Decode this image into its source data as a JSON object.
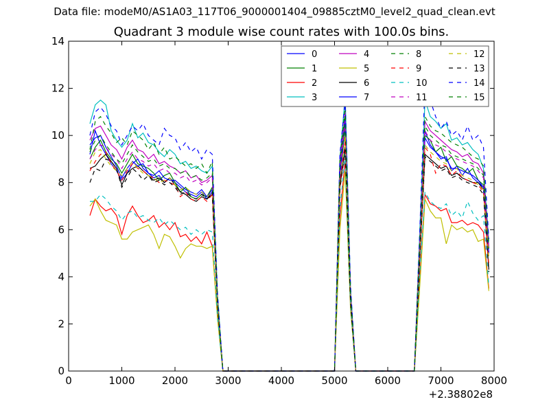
{
  "figure": {
    "suptitle": "Data file: modeM0/AS1A03_117T06_9000001404_09885cztM0_level2_quad_clean.evt"
  },
  "chart_data": {
    "type": "line",
    "title": "Quadrant 3 module wise count rates with 100.0s bins.",
    "xlabel": "",
    "ylabel": "",
    "x_offset_label": "+2.38802e8",
    "xlim": [
      0,
      8000
    ],
    "ylim": [
      0,
      14
    ],
    "x_ticks": [
      0,
      1000,
      2000,
      3000,
      4000,
      5000,
      6000,
      7000,
      8000
    ],
    "y_ticks": [
      0,
      2,
      4,
      6,
      8,
      10,
      12,
      14
    ],
    "grid": false,
    "legend_position": "top-right",
    "x": [
      400,
      500,
      600,
      700,
      800,
      900,
      1000,
      1100,
      1200,
      1300,
      1400,
      1500,
      1600,
      1700,
      1800,
      1900,
      2000,
      2100,
      2200,
      2300,
      2400,
      2500,
      2600,
      2700,
      2800,
      2900,
      3000,
      5000,
      5100,
      5200,
      5300,
      5400,
      6500,
      6600,
      6700,
      6800,
      6900,
      7000,
      7100,
      7200,
      7300,
      7400,
      7500,
      7600,
      7700,
      7800,
      7900
    ],
    "series": [
      {
        "name": "0",
        "color": "#0000ff",
        "dash": false,
        "values": [
          9.2,
          10.2,
          9.6,
          9.2,
          8.8,
          8.5,
          8.1,
          8.4,
          8.8,
          9.0,
          8.6,
          8.4,
          8.2,
          8.3,
          8.0,
          8.2,
          8.0,
          7.8,
          7.6,
          7.5,
          7.4,
          7.6,
          7.3,
          7.6,
          3.0,
          0,
          0,
          0,
          8.0,
          10.5,
          3.0,
          0,
          0,
          5.0,
          10.2,
          9.6,
          9.3,
          9.0,
          9.1,
          8.5,
          8.7,
          8.3,
          8.6,
          8.2,
          8.0,
          7.8,
          5.0
        ]
      },
      {
        "name": "1",
        "color": "#008000",
        "dash": false,
        "values": [
          9.0,
          9.5,
          9.8,
          9.3,
          9.0,
          8.8,
          8.4,
          8.8,
          9.2,
          8.8,
          8.7,
          8.6,
          8.4,
          8.1,
          8.3,
          8.4,
          8.0,
          7.6,
          7.8,
          7.4,
          7.3,
          7.5,
          7.4,
          7.8,
          2.8,
          0,
          0,
          0,
          8.5,
          10.3,
          3.0,
          0,
          0,
          5.0,
          10.0,
          9.8,
          9.3,
          9.5,
          8.9,
          9.1,
          8.7,
          8.6,
          8.4,
          8.6,
          8.1,
          7.9,
          5.2
        ]
      },
      {
        "name": "2",
        "color": "#ff0000",
        "dash": false,
        "values": [
          6.6,
          7.3,
          7.0,
          6.8,
          6.9,
          6.6,
          5.8,
          6.6,
          7.0,
          6.6,
          6.3,
          6.4,
          6.6,
          6.1,
          6.3,
          6.0,
          6.3,
          5.7,
          5.8,
          5.5,
          5.7,
          5.4,
          5.9,
          5.3,
          2.3,
          0,
          0,
          0,
          6.5,
          9.0,
          2.7,
          0,
          0,
          3.8,
          7.5,
          7.1,
          7.0,
          6.8,
          6.9,
          6.3,
          6.3,
          6.4,
          6.2,
          6.3,
          6.2,
          5.9,
          3.5
        ]
      },
      {
        "name": "3",
        "color": "#00bfbf",
        "dash": false,
        "values": [
          10.5,
          11.3,
          11.5,
          11.3,
          10.2,
          9.8,
          9.5,
          9.8,
          10.5,
          9.9,
          10.1,
          9.7,
          9.6,
          9.3,
          9.1,
          9.4,
          9.2,
          8.8,
          8.9,
          8.6,
          8.7,
          8.5,
          8.4,
          8.7,
          3.2,
          0,
          0,
          0,
          9.0,
          11.7,
          3.5,
          0,
          0,
          5.8,
          11.5,
          10.8,
          10.6,
          10.3,
          10.5,
          9.8,
          9.9,
          9.6,
          9.7,
          9.4,
          9.2,
          8.6,
          5.5
        ]
      },
      {
        "name": "4",
        "color": "#bf00bf",
        "dash": false,
        "values": [
          9.8,
          10.3,
          10.4,
          10.0,
          9.6,
          9.4,
          9.0,
          9.5,
          9.8,
          9.4,
          9.3,
          9.0,
          9.2,
          8.8,
          8.9,
          8.7,
          8.6,
          8.4,
          8.5,
          8.2,
          8.3,
          8.0,
          8.1,
          8.3,
          3.0,
          0,
          0,
          0,
          8.8,
          11.0,
          3.3,
          0,
          0,
          5.4,
          10.6,
          10.2,
          10.0,
          9.8,
          9.6,
          9.4,
          9.3,
          9.1,
          9.2,
          8.9,
          8.8,
          8.4,
          5.3
        ]
      },
      {
        "name": "5",
        "color": "#bfbf00",
        "dash": false,
        "values": [
          7.0,
          7.3,
          6.8,
          6.4,
          6.3,
          6.2,
          5.6,
          5.6,
          5.9,
          6.0,
          6.1,
          6.2,
          5.8,
          5.2,
          5.8,
          5.7,
          5.3,
          4.8,
          5.2,
          5.4,
          5.3,
          5.3,
          5.2,
          5.3,
          2.2,
          0,
          0,
          0,
          6.0,
          8.5,
          2.6,
          0,
          0,
          3.5,
          7.3,
          6.8,
          6.5,
          6.5,
          5.4,
          6.2,
          6.0,
          6.1,
          5.9,
          6.0,
          5.5,
          5.6,
          3.4
        ]
      },
      {
        "name": "6",
        "color": "#000000",
        "dash": false,
        "values": [
          8.6,
          8.7,
          9.0,
          9.2,
          8.9,
          8.6,
          7.9,
          8.4,
          8.6,
          8.7,
          8.5,
          8.3,
          8.1,
          8.2,
          8.0,
          8.2,
          7.9,
          7.6,
          7.5,
          7.3,
          7.2,
          7.4,
          7.3,
          7.5,
          2.8,
          0,
          0,
          0,
          7.8,
          9.5,
          2.9,
          0,
          0,
          4.7,
          9.2,
          9.0,
          8.8,
          8.6,
          8.7,
          8.3,
          8.4,
          8.2,
          8.1,
          8.0,
          8.0,
          7.7,
          4.3
        ]
      },
      {
        "name": "7",
        "color": "#0000ff",
        "dash": false,
        "values": [
          9.6,
          9.9,
          10.0,
          9.5,
          9.1,
          8.7,
          8.2,
          8.6,
          8.9,
          8.7,
          8.8,
          8.4,
          8.3,
          8.5,
          8.2,
          8.1,
          8.1,
          7.9,
          7.7,
          7.6,
          7.5,
          7.7,
          7.4,
          7.7,
          3.0,
          0,
          0,
          0,
          8.2,
          10.8,
          3.1,
          0,
          0,
          5.0,
          9.9,
          9.5,
          9.3,
          9.1,
          9.0,
          8.6,
          8.6,
          8.5,
          8.4,
          8.3,
          8.1,
          7.8,
          5.0
        ]
      },
      {
        "name": "8",
        "color": "#008000",
        "dash": true,
        "values": [
          9.4,
          10.6,
          10.8,
          10.4,
          10.1,
          9.7,
          9.9,
          9.6,
          10.2,
          10.0,
          9.8,
          9.4,
          9.7,
          9.2,
          9.5,
          9.0,
          9.1,
          8.9,
          8.7,
          8.8,
          8.6,
          8.8,
          8.4,
          8.9,
          3.1,
          0,
          0,
          0,
          9.0,
          11.2,
          3.4,
          0,
          0,
          5.6,
          10.8,
          10.4,
          10.2,
          10.1,
          9.9,
          9.7,
          9.6,
          9.5,
          9.3,
          9.1,
          9.0,
          8.7,
          5.4
        ]
      },
      {
        "name": "9",
        "color": "#ff0000",
        "dash": true,
        "values": [
          8.5,
          8.9,
          9.2,
          9.3,
          8.8,
          8.5,
          8.1,
          8.5,
          8.8,
          8.6,
          8.5,
          8.3,
          8.2,
          8.0,
          8.1,
          8.0,
          7.9,
          7.4,
          7.6,
          7.3,
          7.2,
          7.4,
          7.2,
          7.5,
          2.8,
          0,
          0,
          0,
          7.9,
          9.8,
          3.0,
          0,
          0,
          4.8,
          9.5,
          9.2,
          8.4,
          8.8,
          8.7,
          8.3,
          8.5,
          8.2,
          8.1,
          8.0,
          7.9,
          7.6,
          4.5
        ]
      },
      {
        "name": "10",
        "color": "#00bfbf",
        "dash": true,
        "values": [
          7.2,
          7.2,
          7.5,
          7.3,
          7.0,
          6.8,
          6.4,
          6.7,
          6.8,
          6.5,
          6.6,
          6.4,
          6.3,
          6.5,
          6.2,
          6.4,
          6.2,
          6.0,
          6.1,
          5.8,
          6.0,
          5.8,
          6.0,
          5.9,
          2.3,
          0,
          0,
          0,
          6.8,
          9.2,
          2.8,
          0,
          0,
          4.0,
          7.6,
          7.2,
          7.0,
          6.9,
          7.1,
          6.6,
          6.8,
          6.5,
          7.2,
          6.7,
          6.4,
          6.6,
          3.6
        ]
      },
      {
        "name": "11",
        "color": "#bf00bf",
        "dash": true,
        "values": [
          9.0,
          9.4,
          9.6,
          9.5,
          9.2,
          9.0,
          8.6,
          9.0,
          9.3,
          9.0,
          8.9,
          8.7,
          8.8,
          8.5,
          8.6,
          8.4,
          8.4,
          8.2,
          8.3,
          8.0,
          8.1,
          7.9,
          8.0,
          8.2,
          3.0,
          0,
          0,
          0,
          8.5,
          10.6,
          3.2,
          0,
          0,
          5.2,
          10.2,
          9.8,
          9.6,
          9.5,
          9.3,
          9.1,
          9.0,
          8.9,
          8.8,
          8.7,
          8.5,
          8.2,
          5.1
        ]
      },
      {
        "name": "12",
        "color": "#bfbf00",
        "dash": true,
        "values": [
          8.8,
          9.3,
          9.4,
          9.0,
          8.7,
          8.5,
          8.3,
          8.6,
          8.9,
          8.6,
          8.4,
          8.3,
          8.2,
          8.0,
          8.1,
          8.2,
          7.9,
          7.7,
          7.8,
          7.6,
          7.5,
          7.6,
          7.4,
          7.6,
          2.9,
          0,
          0,
          0,
          8.1,
          10.0,
          3.0,
          0,
          0,
          4.9,
          9.6,
          9.3,
          9.1,
          8.9,
          8.8,
          8.5,
          8.6,
          8.3,
          8.2,
          8.1,
          7.9,
          7.7,
          4.8
        ]
      },
      {
        "name": "13",
        "color": "#000000",
        "dash": true,
        "values": [
          8.0,
          8.6,
          8.5,
          9.0,
          8.9,
          8.6,
          7.8,
          8.2,
          8.6,
          8.4,
          8.1,
          8.3,
          8.0,
          8.1,
          7.9,
          8.0,
          7.8,
          7.5,
          7.6,
          7.4,
          7.3,
          7.5,
          7.3,
          7.6,
          2.8,
          0,
          0,
          0,
          7.7,
          9.4,
          2.9,
          0,
          0,
          4.6,
          9.1,
          8.9,
          8.7,
          8.5,
          8.6,
          8.2,
          8.3,
          8.1,
          8.0,
          7.9,
          7.8,
          7.5,
          4.2
        ]
      },
      {
        "name": "14",
        "color": "#0000ff",
        "dash": true,
        "values": [
          10.0,
          11.0,
          11.2,
          10.9,
          10.4,
          10.2,
          9.6,
          10.0,
          10.4,
          10.2,
          10.5,
          10.0,
          9.8,
          9.6,
          10.3,
          10.0,
          9.9,
          9.4,
          9.7,
          9.3,
          9.5,
          9.0,
          9.4,
          9.2,
          3.3,
          0,
          0,
          0,
          9.2,
          11.5,
          3.6,
          0,
          0,
          5.8,
          12.2,
          11.5,
          10.8,
          10.3,
          10.6,
          10.0,
          10.2,
          9.8,
          10.4,
          9.8,
          10.0,
          9.5,
          5.6
        ]
      },
      {
        "name": "15",
        "color": "#008000",
        "dash": true,
        "values": [
          9.3,
          9.8,
          10.0,
          9.6,
          9.3,
          9.0,
          8.8,
          9.2,
          9.6,
          9.3,
          9.1,
          8.9,
          9.0,
          8.7,
          8.8,
          8.6,
          8.6,
          8.4,
          8.5,
          8.2,
          8.3,
          8.1,
          8.2,
          8.4,
          3.0,
          0,
          0,
          0,
          8.6,
          10.9,
          3.3,
          0,
          0,
          5.3,
          10.4,
          10.0,
          9.8,
          9.6,
          9.5,
          9.2,
          9.1,
          9.0,
          8.9,
          8.8,
          8.6,
          8.3,
          5.2
        ]
      }
    ]
  }
}
